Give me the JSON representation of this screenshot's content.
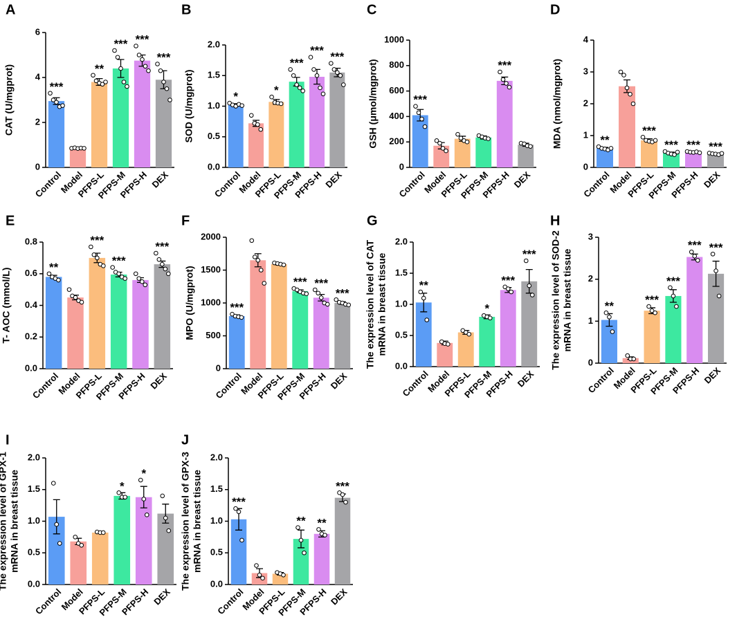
{
  "chart_data": [
    {
      "type": "bar",
      "panel": "A",
      "ylabel": [
        "CAT (U/mgprot)"
      ],
      "categories": [
        "Control",
        "Model",
        "PFPS-L",
        "PFPS-M",
        "PFPS-H",
        "DEX"
      ],
      "values": [
        2.95,
        0.85,
        3.8,
        4.4,
        4.75,
        3.9
      ],
      "errors": [
        0.15,
        0.03,
        0.15,
        0.4,
        0.25,
        0.4
      ],
      "points": [
        [
          3.3,
          3.0,
          2.9,
          2.7,
          2.75
        ],
        [
          0.85,
          0.87,
          0.84,
          0.86,
          0.85
        ],
        [
          4.1,
          3.85,
          3.75,
          3.7,
          3.8
        ],
        [
          5.2,
          4.9,
          4.4,
          3.8,
          3.6
        ],
        [
          5.4,
          5.0,
          4.8,
          4.5,
          4.3
        ],
        [
          4.6,
          4.3,
          3.8,
          3.5,
          3.0
        ]
      ],
      "annotations": [
        "***",
        null,
        "**",
        "***",
        "***",
        "***"
      ],
      "colors": [
        "#5b9cf5",
        "#f7a09a",
        "#fbbd7d",
        "#3de8a0",
        "#d98cf0",
        "#a5a5a8"
      ],
      "ylim": [
        0,
        6
      ],
      "yticks": [
        0,
        2,
        4,
        6
      ]
    },
    {
      "type": "bar",
      "panel": "B",
      "ylabel": [
        "SOD (U/mgprot)"
      ],
      "categories": [
        "Control",
        "Model",
        "PFPS-L",
        "PFPS-M",
        "PFPS-H",
        "DEX"
      ],
      "values": [
        1.02,
        0.72,
        1.07,
        1.4,
        1.48,
        1.55
      ],
      "errors": [
        0.02,
        0.05,
        0.04,
        0.07,
        0.12,
        0.07
      ],
      "points": [
        [
          1.05,
          1.02,
          1.0,
          1.03,
          1.01
        ],
        [
          0.85,
          0.72,
          0.7,
          0.62
        ],
        [
          1.15,
          1.06,
          1.05,
          1.04
        ],
        [
          1.6,
          1.5,
          1.35,
          1.3,
          1.25
        ],
        [
          1.8,
          1.6,
          1.5,
          1.3,
          1.2
        ],
        [
          1.7,
          1.6,
          1.55,
          1.5,
          1.35
        ]
      ],
      "annotations": [
        "*",
        null,
        "*",
        "***",
        "***",
        "***"
      ],
      "colors": [
        "#5b9cf5",
        "#f7a09a",
        "#fbbd7d",
        "#3de8a0",
        "#d98cf0",
        "#a5a5a8"
      ],
      "ylim": [
        0,
        2
      ],
      "yticks": [
        {
          "value": 0,
          "label": "0.0"
        },
        0.5,
        {
          "value": 1,
          "label": "1.0"
        },
        1.5,
        {
          "value": 2,
          "label": "2.0"
        }
      ]
    },
    {
      "type": "bar",
      "panel": "C",
      "ylabel": [
        "GSH (μmol/mgprot)"
      ],
      "categories": [
        "Control",
        "Model",
        "PFPS-L",
        "PFPS-M",
        "PFPS-H",
        "DEX"
      ],
      "values": [
        410,
        170,
        225,
        235,
        680,
        178
      ],
      "errors": [
        45,
        25,
        20,
        12,
        30,
        12
      ],
      "points": [
        [
          480,
          430,
          380,
          320
        ],
        [
          210,
          190,
          150,
          130
        ],
        [
          260,
          230,
          210,
          200
        ],
        [
          250,
          240,
          230,
          225
        ],
        [
          750,
          690,
          660,
          630
        ],
        [
          190,
          185,
          170,
          165
        ]
      ],
      "annotations": [
        "***",
        null,
        null,
        null,
        "***",
        null
      ],
      "colors": [
        "#5b9cf5",
        "#f7a09a",
        "#fbbd7d",
        "#3de8a0",
        "#d98cf0",
        "#a5a5a8"
      ],
      "ylim": [
        0,
        1000
      ],
      "yticks": [
        0,
        200,
        400,
        600,
        800,
        1000
      ]
    },
    {
      "type": "bar",
      "panel": "D",
      "ylabel": [
        "MDA (nmol/mgprot)"
      ],
      "categories": [
        "Control",
        "Model",
        "PFPS-L",
        "PFPS-M",
        "PFPS-H",
        "DEX"
      ],
      "values": [
        0.6,
        2.55,
        0.85,
        0.45,
        0.48,
        0.43
      ],
      "errors": [
        0.03,
        0.2,
        0.05,
        0.03,
        0.02,
        0.02
      ],
      "points": [
        [
          0.65,
          0.6,
          0.58,
          0.55,
          0.6
        ],
        [
          3.0,
          2.9,
          2.5,
          2.3,
          2.0
        ],
        [
          0.95,
          0.85,
          0.82,
          0.8,
          0.85
        ],
        [
          0.5,
          0.45,
          0.42,
          0.4,
          0.48
        ],
        [
          0.5,
          0.48,
          0.47,
          0.49,
          0.46
        ],
        [
          0.45,
          0.43,
          0.42,
          0.4,
          0.44
        ]
      ],
      "annotations": [
        "**",
        null,
        "***",
        "***",
        "***",
        "***"
      ],
      "colors": [
        "#5b9cf5",
        "#f7a09a",
        "#fbbd7d",
        "#3de8a0",
        "#d98cf0",
        "#a5a5a8"
      ],
      "ylim": [
        0,
        4
      ],
      "yticks": [
        0,
        1,
        2,
        3,
        4
      ]
    },
    {
      "type": "bar",
      "panel": "E",
      "ylabel": [
        "T- AOC (mmol/L)"
      ],
      "categories": [
        "Control",
        "Model",
        "PFPS-L",
        "PFPS-M",
        "PFPS-H",
        "DEX"
      ],
      "values": [
        0.58,
        0.45,
        0.7,
        0.595,
        0.56,
        0.66
      ],
      "errors": [
        0.01,
        0.015,
        0.03,
        0.015,
        0.015,
        0.02
      ],
      "points": [
        [
          0.6,
          0.58,
          0.57,
          0.56
        ],
        [
          0.5,
          0.46,
          0.45,
          0.43,
          0.42
        ],
        [
          0.77,
          0.72,
          0.7,
          0.66,
          0.65
        ],
        [
          0.64,
          0.61,
          0.6,
          0.58,
          0.57
        ],
        [
          0.6,
          0.57,
          0.55,
          0.53
        ],
        [
          0.73,
          0.69,
          0.66,
          0.63,
          0.6
        ]
      ],
      "annotations": [
        "**",
        null,
        "***",
        "***",
        null,
        "***"
      ],
      "colors": [
        "#5b9cf5",
        "#f7a09a",
        "#fbbd7d",
        "#3de8a0",
        "#d98cf0",
        "#a5a5a8"
      ],
      "ylim": [
        0,
        0.8
      ],
      "yticks": [
        {
          "value": 0,
          "label": "0.0"
        },
        0.2,
        0.4,
        0.6,
        0.8
      ]
    },
    {
      "type": "bar",
      "panel": "F",
      "ylabel": [
        "MPO (U/mgprot)"
      ],
      "categories": [
        "Control",
        "Model",
        "PFPS-L",
        "PFPS-M",
        "PFPS-H",
        "DEX"
      ],
      "values": [
        800,
        1650,
        1590,
        1180,
        1080,
        1000
      ],
      "errors": [
        20,
        100,
        15,
        20,
        50,
        20
      ],
      "points": [
        [
          830,
          800,
          790,
          780
        ],
        [
          1950,
          1700,
          1650,
          1500,
          1300
        ],
        [
          1610,
          1600,
          1590,
          1580
        ],
        [
          1220,
          1200,
          1170,
          1150,
          1140
        ],
        [
          1200,
          1150,
          1080,
          1000,
          980
        ],
        [
          1050,
          1010,
          1000,
          980,
          970
        ]
      ],
      "annotations": [
        "***",
        null,
        null,
        "***",
        "***",
        "***"
      ],
      "colors": [
        "#5b9cf5",
        "#f7a09a",
        "#fbbd7d",
        "#3de8a0",
        "#d98cf0",
        "#a5a5a8"
      ],
      "ylim": [
        0,
        2000
      ],
      "yticks": [
        0,
        500,
        1000,
        1500,
        2000
      ]
    },
    {
      "type": "bar",
      "panel": "G",
      "ylabel": [
        "The expression level of CAT",
        "mRNA in breast tissue"
      ],
      "categories": [
        "Control",
        "Model",
        "PFPS-L",
        "PFPS-M",
        "PFPS-H",
        "DEX"
      ],
      "values": [
        1.03,
        0.38,
        0.55,
        0.8,
        1.23,
        1.37
      ],
      "errors": [
        0.15,
        0.03,
        0.03,
        0.03,
        0.04,
        0.19
      ],
      "points": [
        [
          1.2,
          1.1,
          0.75
        ],
        [
          0.4,
          0.37,
          0.36
        ],
        [
          0.58,
          0.55,
          0.52
        ],
        [
          0.82,
          0.8,
          0.78
        ],
        [
          1.28,
          1.25,
          1.2
        ],
        [
          1.7,
          1.3,
          1.15
        ]
      ],
      "annotations": [
        "**",
        null,
        null,
        "*",
        "***",
        "***"
      ],
      "colors": [
        "#5b9cf5",
        "#f7a09a",
        "#fbbd7d",
        "#3de8a0",
        "#d98cf0",
        "#a5a5a8"
      ],
      "ylim": [
        0,
        2
      ],
      "yticks": [
        {
          "value": 0,
          "label": "0.0"
        },
        0.5,
        {
          "value": 1,
          "label": "1.0"
        },
        1.5,
        {
          "value": 2,
          "label": "2.0"
        }
      ]
    },
    {
      "type": "bar",
      "panel": "H",
      "ylabel": [
        "The expression level of SOD-2",
        "mRNA in breast tissue"
      ],
      "categories": [
        "Control",
        "Model",
        "PFPS-L",
        "PFPS-M",
        "PFPS-H",
        "DEX"
      ],
      "values": [
        1.03,
        0.12,
        1.25,
        1.6,
        2.53,
        2.13
      ],
      "errors": [
        0.15,
        0.03,
        0.07,
        0.15,
        0.07,
        0.3
      ],
      "points": [
        [
          1.2,
          1.1,
          0.75
        ],
        [
          0.18,
          0.1,
          0.1
        ],
        [
          1.35,
          1.25,
          1.2
        ],
        [
          1.8,
          1.6,
          1.35
        ],
        [
          2.65,
          2.55,
          2.45
        ],
        [
          2.6,
          2.2,
          1.6
        ]
      ],
      "annotations": [
        "**",
        null,
        "***",
        "***",
        "***",
        "***"
      ],
      "colors": [
        "#5b9cf5",
        "#f7a09a",
        "#fbbd7d",
        "#3de8a0",
        "#d98cf0",
        "#a5a5a8"
      ],
      "ylim": [
        0,
        3
      ],
      "yticks": [
        0,
        1,
        2,
        3
      ]
    },
    {
      "type": "bar",
      "panel": "I",
      "ylabel": [
        "The expression level of GPX-1",
        "mRNA in breast tissue"
      ],
      "categories": [
        "Control",
        "Model",
        "PFPS-L",
        "PFPS-M",
        "PFPS-H",
        "DEX"
      ],
      "values": [
        1.07,
        0.68,
        0.82,
        1.4,
        1.38,
        1.12
      ],
      "errors": [
        0.27,
        0.05,
        0.01,
        0.05,
        0.17,
        0.15
      ],
      "points": [
        [
          1.6,
          0.95,
          0.65
        ],
        [
          0.75,
          0.65,
          0.62
        ],
        [
          0.83,
          0.82,
          0.82
        ],
        [
          1.45,
          1.38,
          1.38
        ],
        [
          1.65,
          1.35,
          1.1
        ],
        [
          1.4,
          1.05,
          0.85
        ]
      ],
      "annotations": [
        null,
        null,
        null,
        "*",
        "*",
        null
      ],
      "colors": [
        "#5b9cf5",
        "#f7a09a",
        "#fbbd7d",
        "#3de8a0",
        "#d98cf0",
        "#a5a5a8"
      ],
      "ylim": [
        0,
        2
      ],
      "yticks": [
        {
          "value": 0,
          "label": "0.0"
        },
        0.5,
        {
          "value": 1,
          "label": "1.0"
        },
        1.5,
        {
          "value": 2,
          "label": "2.0"
        }
      ]
    },
    {
      "type": "bar",
      "panel": "J",
      "ylabel": [
        "The expression level of GPX-3",
        "mRNA in breast tissue"
      ],
      "categories": [
        "Control",
        "Model",
        "PFPS-L",
        "PFPS-M",
        "PFPS-H",
        "DEX"
      ],
      "values": [
        1.03,
        0.18,
        0.17,
        0.72,
        0.8,
        1.37
      ],
      "errors": [
        0.17,
        0.07,
        0.02,
        0.14,
        0.05,
        0.06
      ],
      "points": [
        [
          1.2,
          1.15,
          0.7
        ],
        [
          0.3,
          0.15,
          0.1
        ],
        [
          0.19,
          0.17,
          0.15
        ],
        [
          0.9,
          0.7,
          0.5
        ],
        [
          0.87,
          0.8,
          0.78
        ],
        [
          1.45,
          1.42,
          1.3
        ]
      ],
      "annotations": [
        "***",
        null,
        null,
        "**",
        "**",
        "***"
      ],
      "colors": [
        "#5b9cf5",
        "#f7a09a",
        "#fbbd7d",
        "#3de8a0",
        "#d98cf0",
        "#a5a5a8"
      ],
      "ylim": [
        0,
        2
      ],
      "yticks": [
        {
          "value": 0,
          "label": "0.0"
        },
        0.5,
        {
          "value": 1,
          "label": "1.0"
        },
        1.5,
        {
          "value": 2,
          "label": "2.0"
        }
      ]
    }
  ]
}
